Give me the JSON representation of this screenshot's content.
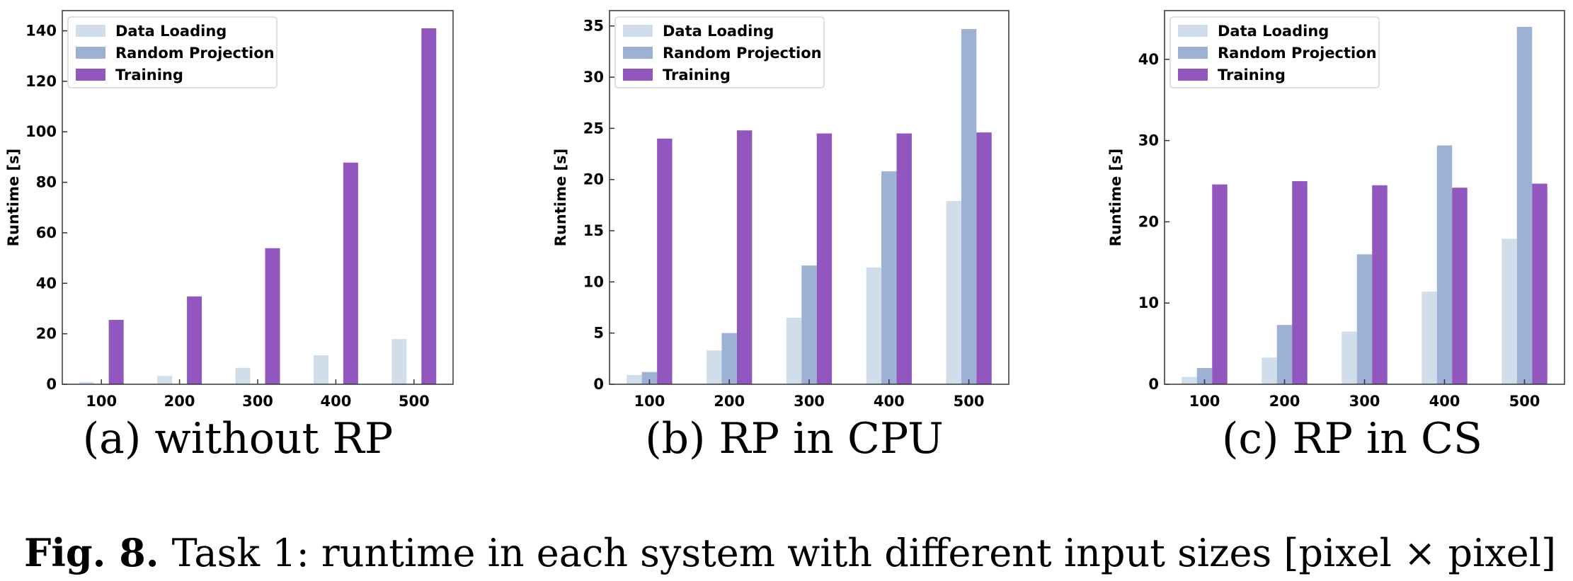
{
  "colors": {
    "Data Loading": "#cfdeea",
    "Random Projection": "#9db1d5",
    "Training": "#9157be"
  },
  "chart_data": [
    {
      "type": "bar",
      "subtitle": "(a) without RP",
      "ylabel": "Runtime [s]",
      "ylim": [
        0,
        148
      ],
      "yticks": [
        0,
        20,
        40,
        60,
        80,
        100,
        120,
        140
      ],
      "categories": [
        "100",
        "200",
        "300",
        "400",
        "500"
      ],
      "legend": "top-left",
      "series": [
        {
          "name": "Data Loading",
          "values": [
            0.9,
            3.3,
            6.5,
            11.5,
            17.9
          ]
        },
        {
          "name": "Random Projection",
          "values": [
            0,
            0,
            0,
            0,
            0
          ]
        },
        {
          "name": "Training",
          "values": [
            25.5,
            34.8,
            53.9,
            87.8,
            141
          ]
        }
      ]
    },
    {
      "type": "bar",
      "subtitle": "(b) RP in CPU",
      "ylabel": "Runtime [s]",
      "ylim": [
        0,
        36.5
      ],
      "yticks": [
        0,
        5,
        10,
        15,
        20,
        25,
        30,
        35
      ],
      "categories": [
        "100",
        "200",
        "300",
        "400",
        "500"
      ],
      "legend": "top-left",
      "series": [
        {
          "name": "Data Loading",
          "values": [
            0.9,
            3.3,
            6.5,
            11.4,
            17.9
          ]
        },
        {
          "name": "Random Projection",
          "values": [
            1.2,
            5.0,
            11.6,
            20.8,
            34.7
          ]
        },
        {
          "name": "Training",
          "values": [
            24.0,
            24.8,
            24.5,
            24.5,
            24.6
          ]
        }
      ]
    },
    {
      "type": "bar",
      "subtitle": "(c) RP in CS",
      "ylabel": "Runtime [s]",
      "ylim": [
        0,
        46
      ],
      "yticks": [
        0,
        10,
        20,
        30,
        40
      ],
      "categories": [
        "100",
        "200",
        "300",
        "400",
        "500"
      ],
      "legend": "top-left",
      "series": [
        {
          "name": "Data Loading",
          "values": [
            0.9,
            3.3,
            6.5,
            11.4,
            17.9
          ]
        },
        {
          "name": "Random Projection",
          "values": [
            2.0,
            7.3,
            16.0,
            29.4,
            44.0
          ]
        },
        {
          "name": "Training",
          "values": [
            24.6,
            25.0,
            24.5,
            24.2,
            24.7
          ]
        }
      ]
    }
  ],
  "caption": {
    "bold": "Fig. 8.",
    "text": "Task 1: runtime in each system with different input sizes [pixel × pixel]"
  }
}
